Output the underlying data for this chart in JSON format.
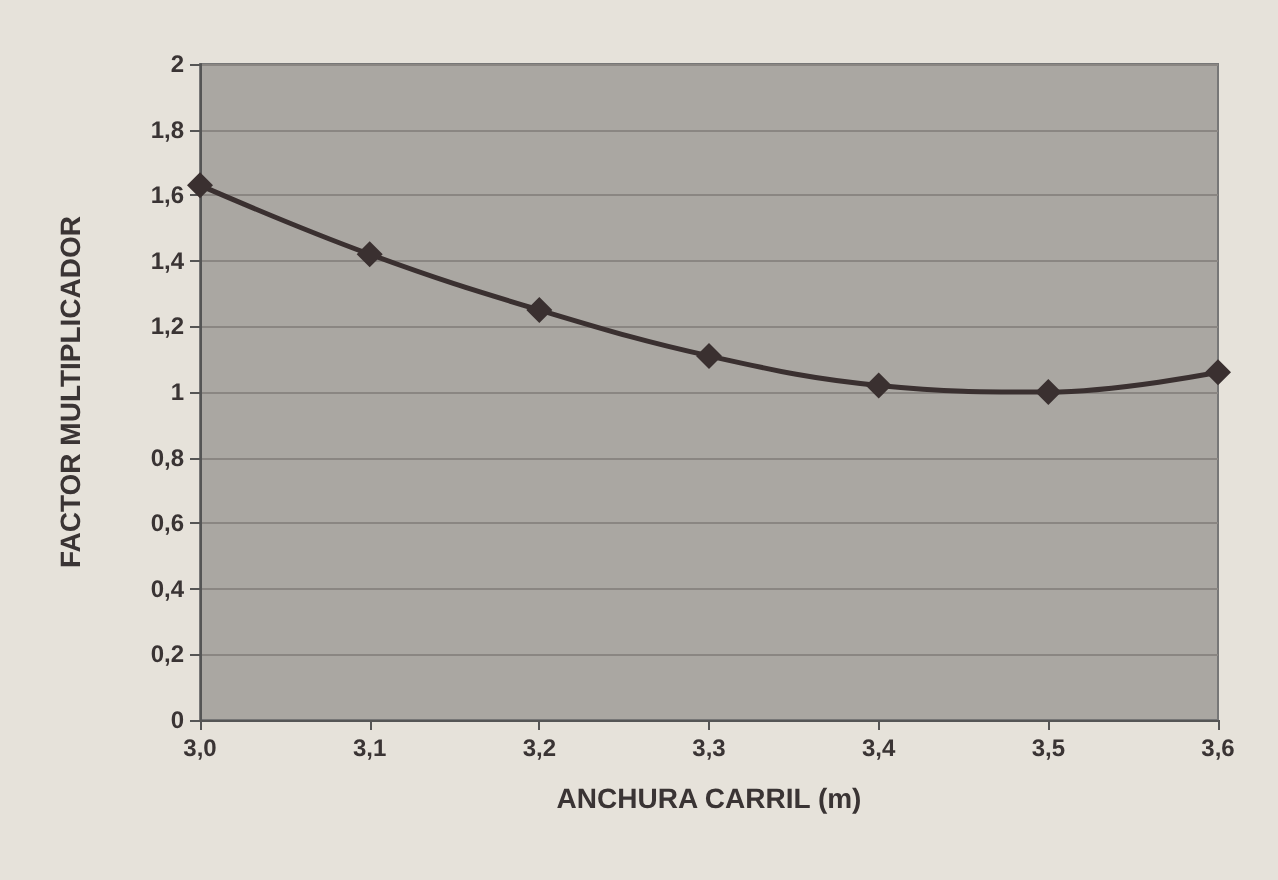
{
  "chart_data": {
    "type": "line",
    "xlabel": "ANCHURA CARRIL (m)",
    "ylabel": "FACTOR MULTIPLICADOR",
    "x": [
      3.0,
      3.1,
      3.2,
      3.3,
      3.4,
      3.5,
      3.6
    ],
    "series": [
      {
        "color": "#3a3030",
        "values": [
          1.63,
          1.42,
          1.25,
          1.11,
          1.02,
          1.0,
          1.06
        ]
      }
    ],
    "xlim": [
      3.0,
      3.6
    ],
    "xticks": [
      {
        "value": 3.0,
        "label": "3,0"
      },
      {
        "value": 3.1,
        "label": "3,1"
      },
      {
        "value": 3.2,
        "label": "3,2"
      },
      {
        "value": 3.3,
        "label": "3,3"
      },
      {
        "value": 3.4,
        "label": "3,4"
      },
      {
        "value": 3.5,
        "label": "3,5"
      },
      {
        "value": 3.6,
        "label": "3,6"
      }
    ],
    "ylim": [
      0,
      2
    ],
    "yticks": [
      0,
      {
        "value": 0.2,
        "label": "0,2"
      },
      {
        "value": 0.4,
        "label": "0,4"
      },
      {
        "value": 0.6,
        "label": "0,6"
      },
      {
        "value": 0.8,
        "label": "0,8"
      },
      1,
      {
        "value": 1.2,
        "label": "1,2"
      },
      {
        "value": 1.4,
        "label": "1,4"
      },
      {
        "value": 1.6,
        "label": "1,6"
      },
      {
        "value": 1.8,
        "label": "1,8"
      },
      2
    ],
    "grid": "y",
    "marker": "diamond",
    "line_style": "solid"
  }
}
